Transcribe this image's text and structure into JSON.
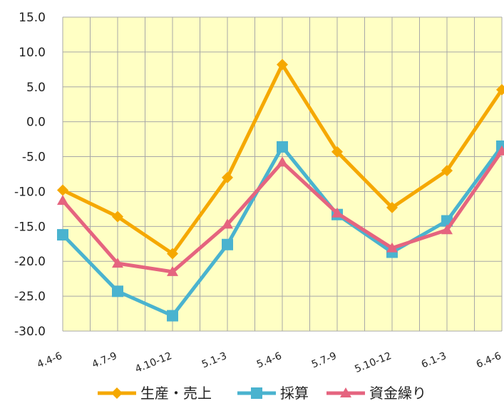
{
  "chart_data": {
    "type": "line",
    "categories": [
      "4.4-6",
      "4.7-9",
      "4.10-12",
      "5.1-3",
      "5.4-6",
      "5.7-9",
      "5.10-12",
      "6.1-3",
      "6.4-6"
    ],
    "ylim": [
      -30,
      15
    ],
    "ytick_step": 5,
    "ytick_labels": [
      "15.0",
      "10.0",
      "5.0",
      "0.0",
      "-5.0",
      "-10.0",
      "-15.0",
      "-20.0",
      "-25.0",
      "-30.0"
    ],
    "grid": true,
    "plot_background": "#ffffc4",
    "legend_position": "bottom",
    "series": [
      {
        "name": "生産・売上",
        "color": "#f5a800",
        "marker": "diamond",
        "values": [
          -9.8,
          -13.6,
          -18.9,
          -8.0,
          8.2,
          -4.3,
          -12.3,
          -7.0,
          4.6
        ]
      },
      {
        "name": "採算",
        "color": "#4ab3cf",
        "marker": "square",
        "values": [
          -16.2,
          -24.3,
          -27.8,
          -17.6,
          -3.6,
          -13.3,
          -18.7,
          -14.2,
          -3.5
        ]
      },
      {
        "name": "資金繰り",
        "color": "#e5647f",
        "marker": "triangle",
        "values": [
          -11.3,
          -20.3,
          -21.5,
          -14.7,
          -5.8,
          -13.1,
          -18.1,
          -15.5,
          -4.2
        ]
      }
    ]
  }
}
